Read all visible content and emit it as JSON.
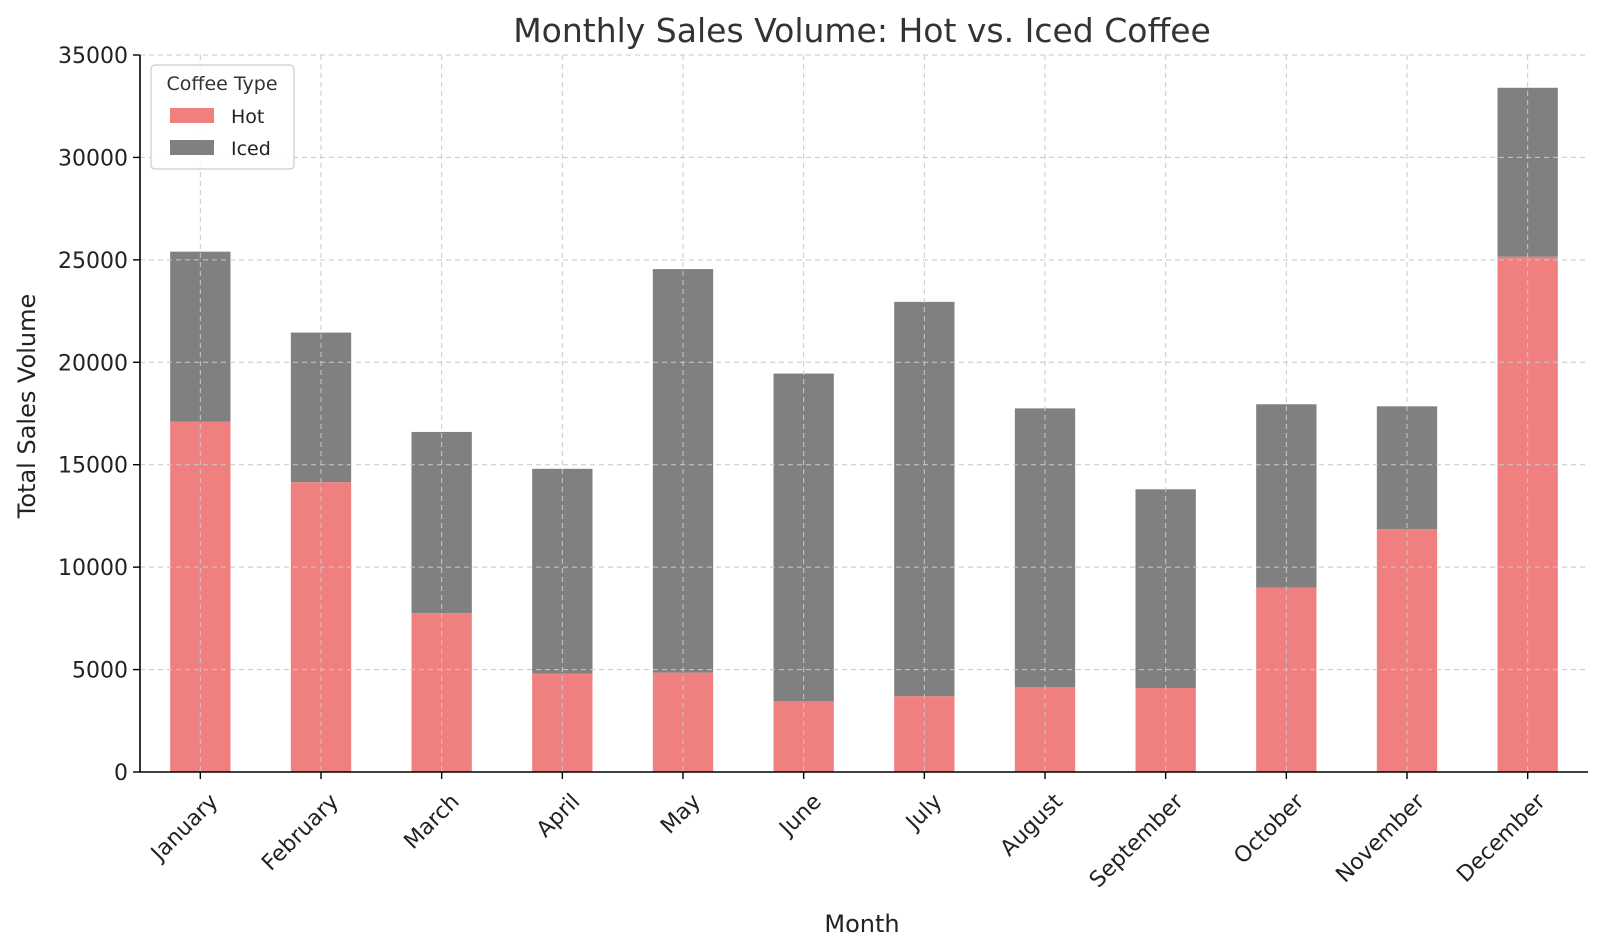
{
  "chart_data": {
    "type": "bar",
    "stacked": true,
    "title": "Monthly Sales Volume: Hot vs. Iced Coffee",
    "xlabel": "Month",
    "ylabel": "Total Sales Volume",
    "ylim": [
      0,
      35000
    ],
    "yticks": [
      0,
      5000,
      10000,
      15000,
      20000,
      25000,
      30000,
      35000
    ],
    "grid": true,
    "legend": {
      "title": "Coffee Type",
      "position": "top-left"
    },
    "categories": [
      "January",
      "February",
      "March",
      "April",
      "May",
      "June",
      "July",
      "August",
      "September",
      "October",
      "November",
      "December"
    ],
    "series": [
      {
        "name": "Hot",
        "color": "#f08080",
        "values": [
          17100,
          14150,
          7750,
          4800,
          4850,
          3450,
          3700,
          4150,
          4100,
          9000,
          11850,
          25150
        ]
      },
      {
        "name": "Iced",
        "color": "#808080",
        "values": [
          8300,
          7300,
          8850,
          10000,
          19700,
          16000,
          19250,
          13600,
          9700,
          8950,
          6000,
          8250
        ]
      }
    ]
  }
}
